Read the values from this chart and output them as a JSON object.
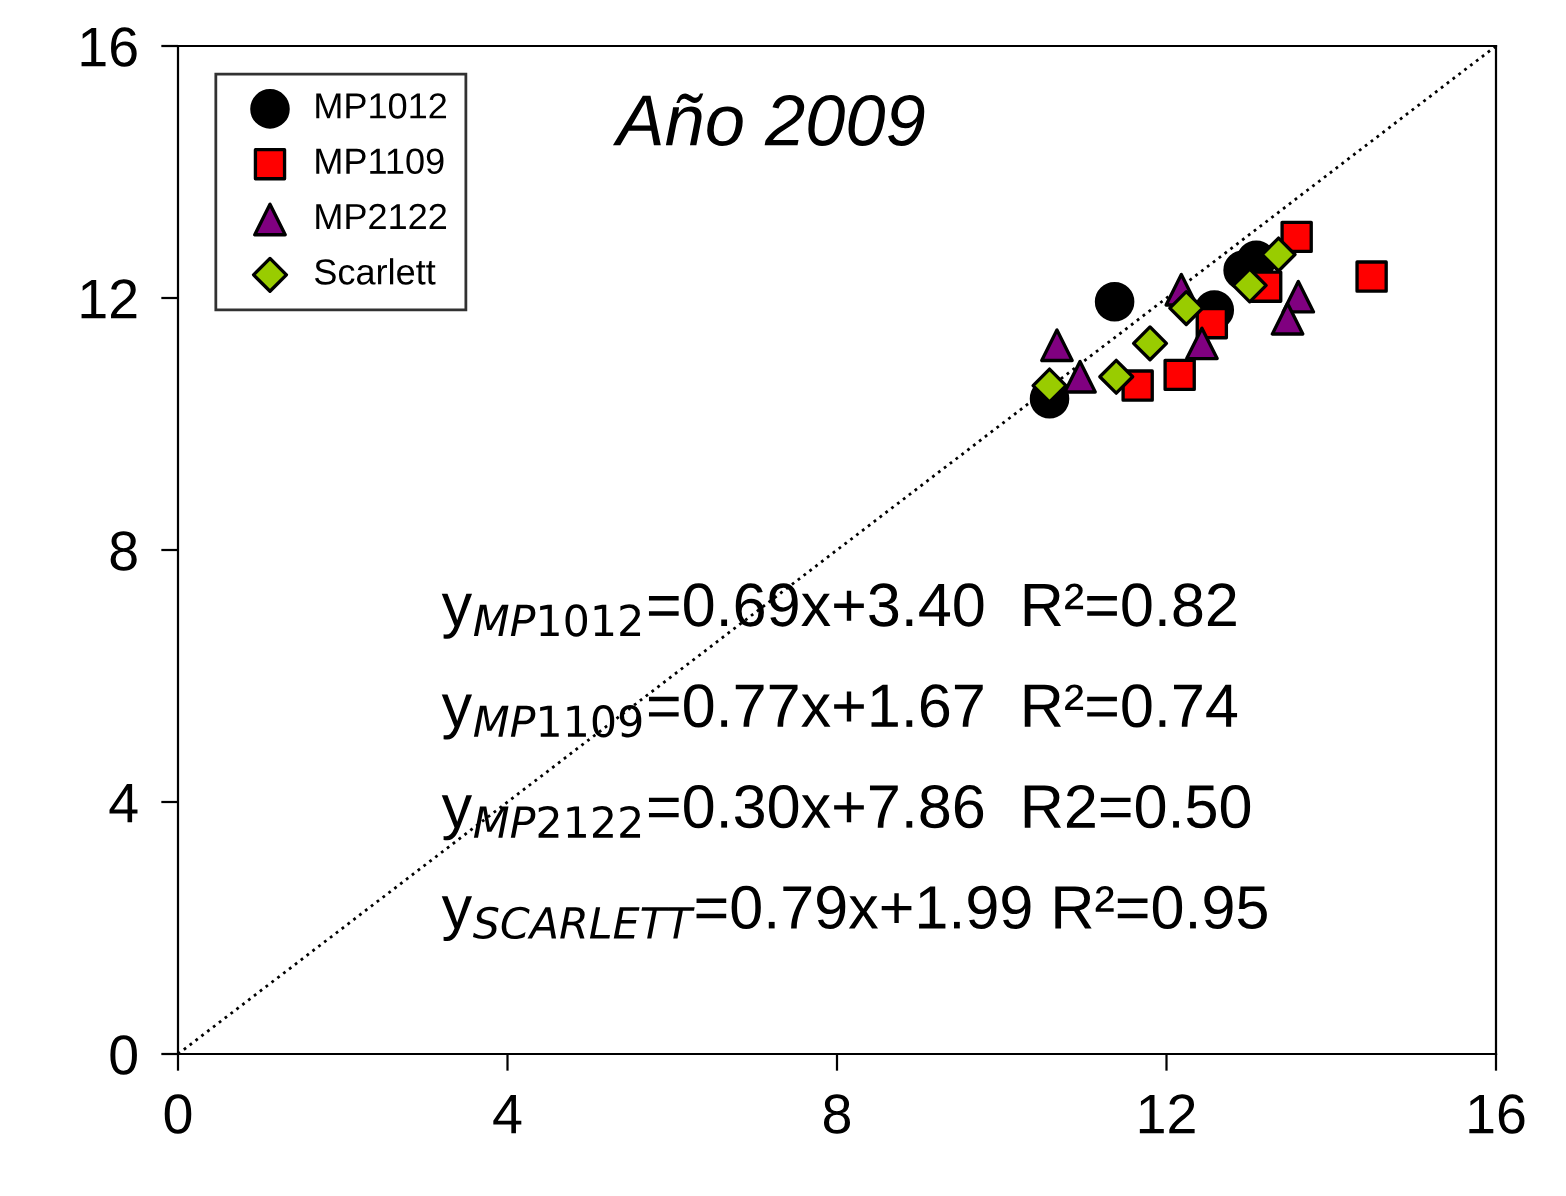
{
  "chart_data": {
    "type": "scatter",
    "title": "Año 2009",
    "xlim": [
      0,
      16
    ],
    "ylim": [
      0,
      16
    ],
    "xticks": [
      0,
      4,
      8,
      12,
      16
    ],
    "yticks": [
      0,
      4,
      8,
      12,
      16
    ],
    "grid": false,
    "legend": "top left",
    "series": [
      {
        "name": "MP1012",
        "color": "#000000",
        "marker": "circle",
        "x": [
          10.58,
          11.37,
          12.58,
          12.93,
          13.09
        ],
        "values": [
          10.4,
          11.94,
          11.81,
          12.44,
          12.6
        ]
      },
      {
        "name": "MP1109",
        "color": "#ff0000",
        "marker": "square",
        "x": [
          11.65,
          12.16,
          12.55,
          13.21,
          13.58,
          14.49
        ],
        "values": [
          10.61,
          10.78,
          11.6,
          12.18,
          12.97,
          12.34
        ]
      },
      {
        "name": "MP2122",
        "color": "#800080",
        "marker": "triangle",
        "x": [
          10.67,
          10.95,
          12.18,
          12.43,
          13.6,
          13.47
        ],
        "values": [
          11.25,
          10.75,
          12.13,
          11.28,
          12.02,
          11.67
        ]
      },
      {
        "name": "Scarlett",
        "color": "#99cc00",
        "marker": "diamond",
        "x": [
          10.58,
          11.39,
          11.8,
          12.24,
          13.01,
          13.36
        ],
        "values": [
          10.61,
          10.75,
          11.28,
          11.84,
          12.2,
          12.69
        ]
      },
      {
        "type": "line",
        "color": "#000000",
        "marker": "none",
        "line_style": "dotted",
        "x": [
          0,
          16
        ],
        "values": [
          0,
          16
        ]
      }
    ],
    "annotations": [
      "y$_{MP1012}$=0.69x+3.40  R²=0.82",
      "y$_{MP1109}$=0.77x+1.67  R²=0.74",
      "y$_{MP2122}$=0.30x+7.86  R2=0.50",
      "y$_{SCARLETT}$=0.79x+1.99 R²=0.95"
    ]
  }
}
